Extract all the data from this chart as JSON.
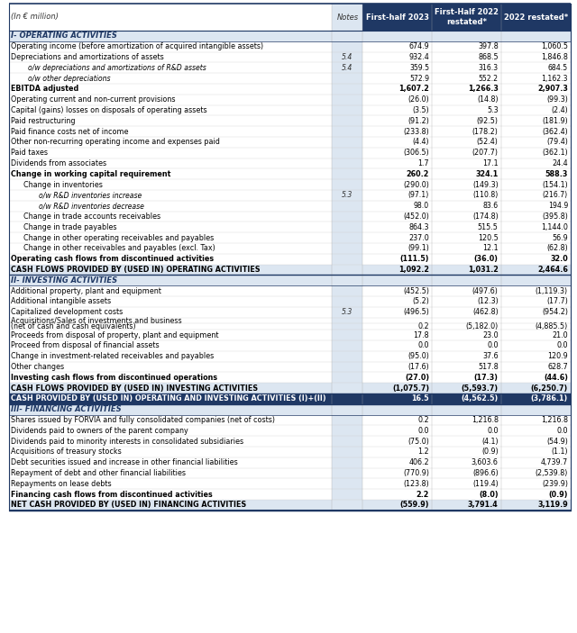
{
  "title_left": "(In € million)",
  "col_notes": "Notes",
  "col1": "First-half 2023",
  "col2_line1": "First-Half 2022",
  "col2_line2": "restated*",
  "col3": "2022 restated*",
  "rows": [
    {
      "label": "I- OPERATING ACTIVITIES",
      "notes": "",
      "v1": "",
      "v2": "",
      "v3": "",
      "style": "section_header",
      "indent": 0
    },
    {
      "label": "Operating income (before amortization of acquired intangible assets)",
      "notes": "",
      "v1": "674.9",
      "v2": "397.8",
      "v3": "1,060.5",
      "style": "normal",
      "indent": 0
    },
    {
      "label": "Depreciations and amortizations of assets",
      "notes": "5.4",
      "v1": "932.4",
      "v2": "868.5",
      "v3": "1,846.8",
      "style": "normal",
      "indent": 0
    },
    {
      "label": "  o/w depreciations and amortizations of R&D assets",
      "notes": "5.4",
      "v1": "359.5",
      "v2": "316.3",
      "v3": "684.5",
      "style": "italic",
      "indent": 1
    },
    {
      "label": "  o/w other depreciations",
      "notes": "",
      "v1": "572.9",
      "v2": "552.2",
      "v3": "1,162.3",
      "style": "italic",
      "indent": 1
    },
    {
      "label": "EBITDA adjusted",
      "notes": "",
      "v1": "1,607.2",
      "v2": "1,266.3",
      "v3": "2,907.3",
      "style": "bold",
      "indent": 0
    },
    {
      "label": "Operating current and non-current provisions",
      "notes": "",
      "v1": "(26.0)",
      "v2": "(14.8)",
      "v3": "(99.3)",
      "style": "normal",
      "indent": 0
    },
    {
      "label": "Capital (gains) losses on disposals of operating assets",
      "notes": "",
      "v1": "(3.5)",
      "v2": "5.3",
      "v3": "(2.4)",
      "style": "normal",
      "indent": 0
    },
    {
      "label": "Paid restructuring",
      "notes": "",
      "v1": "(91.2)",
      "v2": "(92.5)",
      "v3": "(181.9)",
      "style": "normal",
      "indent": 0
    },
    {
      "label": "Paid finance costs net of income",
      "notes": "",
      "v1": "(233.8)",
      "v2": "(178.2)",
      "v3": "(362.4)",
      "style": "normal",
      "indent": 0
    },
    {
      "label": "Other non-recurring operating income and expenses paid",
      "notes": "",
      "v1": "(4.4)",
      "v2": "(52.4)",
      "v3": "(79.4)",
      "style": "normal",
      "indent": 0
    },
    {
      "label": "Paid taxes",
      "notes": "",
      "v1": "(306.5)",
      "v2": "(207.7)",
      "v3": "(362.1)",
      "style": "normal",
      "indent": 0
    },
    {
      "label": "Dividends from associates",
      "notes": "",
      "v1": "1.7",
      "v2": "17.1",
      "v3": "24.4",
      "style": "normal",
      "indent": 0
    },
    {
      "label": "Change in working capital requirement",
      "notes": "",
      "v1": "260.2",
      "v2": "324.1",
      "v3": "588.3",
      "style": "bold",
      "indent": 0
    },
    {
      "label": "Change in inventories",
      "notes": "",
      "v1": "(290.0)",
      "v2": "(149.3)",
      "v3": "(154.1)",
      "style": "normal",
      "indent": 1
    },
    {
      "label": "  o/w R&D inventories increase",
      "notes": "5.3",
      "v1": "(97.1)",
      "v2": "(110.8)",
      "v3": "(216.7)",
      "style": "italic",
      "indent": 2
    },
    {
      "label": "  o/w R&D inventories decrease",
      "notes": "",
      "v1": "98.0",
      "v2": "83.6",
      "v3": "194.9",
      "style": "italic",
      "indent": 2
    },
    {
      "label": "Change in trade accounts receivables",
      "notes": "",
      "v1": "(452.0)",
      "v2": "(174.8)",
      "v3": "(395.8)",
      "style": "normal",
      "indent": 1
    },
    {
      "label": "Change in trade payables",
      "notes": "",
      "v1": "864.3",
      "v2": "515.5",
      "v3": "1,144.0",
      "style": "normal",
      "indent": 1
    },
    {
      "label": "Change in other operating receivables and payables",
      "notes": "",
      "v1": "237.0",
      "v2": "120.5",
      "v3": "56.9",
      "style": "normal",
      "indent": 1
    },
    {
      "label": "Change in other receivables and payables (excl. Tax)",
      "notes": "",
      "v1": "(99.1)",
      "v2": "12.1",
      "v3": "(62.8)",
      "style": "normal",
      "indent": 1
    },
    {
      "label": "Operating cash flows from discontinued activities",
      "notes": "",
      "v1": "(111.5)",
      "v2": "(36.0)",
      "v3": "32.0",
      "style": "bold",
      "indent": 0
    },
    {
      "label": "CASH FLOWS PROVIDED BY (USED IN) OPERATING ACTIVITIES",
      "notes": "",
      "v1": "1,092.2",
      "v2": "1,031.2",
      "v3": "2,464.6",
      "style": "header_row",
      "indent": 0
    },
    {
      "label": "II- INVESTING ACTIVITIES",
      "notes": "",
      "v1": "",
      "v2": "",
      "v3": "",
      "style": "section_header",
      "indent": 0
    },
    {
      "label": "Additional property, plant and equipment",
      "notes": "",
      "v1": "(452.5)",
      "v2": "(497.6)",
      "v3": "(1,119.3)",
      "style": "normal",
      "indent": 0
    },
    {
      "label": "Additional intangible assets",
      "notes": "",
      "v1": "(5.2)",
      "v2": "(12.3)",
      "v3": "(17.7)",
      "style": "normal",
      "indent": 0
    },
    {
      "label": "Capitalized development costs",
      "notes": "5.3",
      "v1": "(496.5)",
      "v2": "(462.8)",
      "v3": "(954.2)",
      "style": "normal",
      "indent": 0
    },
    {
      "label": "Acquisitions/Sales of investments and business",
      "notes": "",
      "v1": "",
      "v2": "",
      "v3": "",
      "style": "normal_noval",
      "indent": 0
    },
    {
      "label": "(net of cash and cash equivalents)",
      "notes": "",
      "v1": "0.2",
      "v2": "(5,182.0)",
      "v3": "(4,885.5)",
      "style": "normal_sub",
      "indent": 0
    },
    {
      "label": "Proceeds from disposal of property, plant and equipment",
      "notes": "",
      "v1": "17.8",
      "v2": "23.0",
      "v3": "21.0",
      "style": "normal",
      "indent": 0
    },
    {
      "label": "Proceed from disposal of financial assets",
      "notes": "",
      "v1": "0.0",
      "v2": "0.0",
      "v3": "0.0",
      "style": "normal",
      "indent": 0
    },
    {
      "label": "Change in investment-related receivables and payables",
      "notes": "",
      "v1": "(95.0)",
      "v2": "37.6",
      "v3": "120.9",
      "style": "normal",
      "indent": 0
    },
    {
      "label": "Other changes",
      "notes": "",
      "v1": "(17.6)",
      "v2": "517.8",
      "v3": "628.7",
      "style": "normal",
      "indent": 0
    },
    {
      "label": "Investing cash flows from discontinued operations",
      "notes": "",
      "v1": "(27.0)",
      "v2": "(17.3)",
      "v3": "(44.6)",
      "style": "bold",
      "indent": 0
    },
    {
      "label": "CASH FLOWS PROVIDED BY (USED IN) INVESTING ACTIVITIES",
      "notes": "",
      "v1": "(1,075.7)",
      "v2": "(5,593.7)",
      "v3": "(6,250.7)",
      "style": "header_row",
      "indent": 0
    },
    {
      "label": "CASH PROVIDED BY (USED IN) OPERATING AND INVESTING ACTIVITIES (I)+(II)",
      "notes": "",
      "v1": "16.5",
      "v2": "(4,562.5)",
      "v3": "(3,786.1)",
      "style": "highlight_row",
      "indent": 0
    },
    {
      "label": "III- FINANCING ACTIVITIES",
      "notes": "",
      "v1": "",
      "v2": "",
      "v3": "",
      "style": "section_header",
      "indent": 0
    },
    {
      "label": "Shares issued by FORVIA and fully consolidated companies (net of costs)",
      "notes": "",
      "v1": "0.2",
      "v2": "1,216.8",
      "v3": "1,216.8",
      "style": "normal",
      "indent": 0
    },
    {
      "label": "Dividends paid to owners of the parent company",
      "notes": "",
      "v1": "0.0",
      "v2": "0.0",
      "v3": "0.0",
      "style": "normal",
      "indent": 0
    },
    {
      "label": "Dividends paid to minority interests in consolidated subsidiaries",
      "notes": "",
      "v1": "(75.0)",
      "v2": "(4.1)",
      "v3": "(54.9)",
      "style": "normal",
      "indent": 0
    },
    {
      "label": "Acquisitions of treasury stocks",
      "notes": "",
      "v1": "1.2",
      "v2": "(0.9)",
      "v3": "(1.1)",
      "style": "normal",
      "indent": 0
    },
    {
      "label": "Debt securities issued and increase in other financial liabilities",
      "notes": "",
      "v1": "406.2",
      "v2": "3,603.6",
      "v3": "4,739.7",
      "style": "normal",
      "indent": 0
    },
    {
      "label": "Repayment of debt and other financial liabilities",
      "notes": "",
      "v1": "(770.9)",
      "v2": "(896.6)",
      "v3": "(2,539.8)",
      "style": "normal",
      "indent": 0
    },
    {
      "label": "Repayments on lease debts",
      "notes": "",
      "v1": "(123.8)",
      "v2": "(119.4)",
      "v3": "(239.9)",
      "style": "normal",
      "indent": 0
    },
    {
      "label": "Financing cash flows from discontinued activities",
      "notes": "",
      "v1": "2.2",
      "v2": "(8.0)",
      "v3": "(0.9)",
      "style": "bold",
      "indent": 0
    },
    {
      "label": "NET CASH PROVIDED BY (USED IN) FINANCING ACTIVITIES",
      "notes": "",
      "v1": "(559.9)",
      "v2": "3,791.4",
      "v3": "3,119.9",
      "style": "header_row",
      "indent": 0
    }
  ],
  "colors": {
    "header_bg": "#1f3864",
    "header_text": "#ffffff",
    "section_header_bg": "#dce6f1",
    "section_header_text": "#1f3864",
    "highlight_row_bg": "#1f3864",
    "highlight_row_text": "#ffffff",
    "normal_text": "#000000",
    "bold_text": "#000000",
    "row_bg": "#ffffff",
    "notes_col_bg": "#dce6f1",
    "border_color": "#1f3864",
    "header_row_bg": "#dce6f1"
  }
}
